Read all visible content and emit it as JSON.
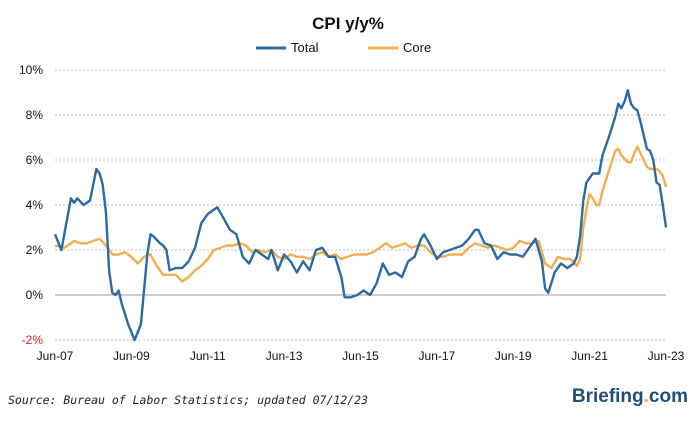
{
  "source_note": "Source: Bureau of Labor Statistics; updated 07/12/23",
  "brand": {
    "name": "Briefing",
    "dot": ".",
    "suffix": "com"
  },
  "colors": {
    "total": "#2e6a9e",
    "core": "#eeaf55",
    "negative_tick": "#e31a1c",
    "grid": "#bdbdbd"
  },
  "chart_data": {
    "type": "line",
    "title": "CPI y/y%",
    "xlabel": "",
    "ylabel": "",
    "x_tick_labels": [
      "Jun-07",
      "Jun-09",
      "Jun-11",
      "Jun-13",
      "Jun-15",
      "Jun-17",
      "Jun-19",
      "Jun-21",
      "Jun-23"
    ],
    "y_tick_labels": [
      "10%",
      "8%",
      "6%",
      "4%",
      "2%",
      "0%",
      "-2%"
    ],
    "y_ticks": [
      10,
      8,
      6,
      4,
      2,
      0,
      -2
    ],
    "ylim": [
      -2,
      10
    ],
    "x_range": [
      "2007-06",
      "2023-06"
    ],
    "grid": true,
    "legend_position": "top-center",
    "series": [
      {
        "name": "Total",
        "color": "#2e6a9e",
        "points": [
          [
            "2007-06",
            2.7
          ],
          [
            "2007-08",
            2.0
          ],
          [
            "2007-11",
            4.3
          ],
          [
            "2007-12",
            4.1
          ],
          [
            "2008-01",
            4.3
          ],
          [
            "2008-03",
            4.0
          ],
          [
            "2008-05",
            4.2
          ],
          [
            "2008-07",
            5.6
          ],
          [
            "2008-08",
            5.4
          ],
          [
            "2008-09",
            4.9
          ],
          [
            "2008-10",
            3.7
          ],
          [
            "2008-11",
            1.1
          ],
          [
            "2008-12",
            0.1
          ],
          [
            "2009-01",
            0.0
          ],
          [
            "2009-02",
            0.2
          ],
          [
            "2009-03",
            -0.4
          ],
          [
            "2009-05",
            -1.3
          ],
          [
            "2009-07",
            -2.0
          ],
          [
            "2009-09",
            -1.3
          ],
          [
            "2009-11",
            1.8
          ],
          [
            "2009-12",
            2.7
          ],
          [
            "2010-01",
            2.6
          ],
          [
            "2010-03",
            2.3
          ],
          [
            "2010-04",
            2.2
          ],
          [
            "2010-05",
            2.0
          ],
          [
            "2010-06",
            1.1
          ],
          [
            "2010-08",
            1.2
          ],
          [
            "2010-10",
            1.2
          ],
          [
            "2010-12",
            1.5
          ],
          [
            "2011-02",
            2.1
          ],
          [
            "2011-04",
            3.2
          ],
          [
            "2011-06",
            3.6
          ],
          [
            "2011-08",
            3.8
          ],
          [
            "2011-09",
            3.9
          ],
          [
            "2011-11",
            3.4
          ],
          [
            "2012-01",
            2.9
          ],
          [
            "2012-03",
            2.7
          ],
          [
            "2012-05",
            1.7
          ],
          [
            "2012-07",
            1.4
          ],
          [
            "2012-09",
            2.0
          ],
          [
            "2012-11",
            1.8
          ],
          [
            "2013-01",
            1.6
          ],
          [
            "2013-02",
            2.0
          ],
          [
            "2013-04",
            1.1
          ],
          [
            "2013-06",
            1.8
          ],
          [
            "2013-08",
            1.5
          ],
          [
            "2013-10",
            1.0
          ],
          [
            "2013-12",
            1.5
          ],
          [
            "2014-02",
            1.1
          ],
          [
            "2014-04",
            2.0
          ],
          [
            "2014-06",
            2.1
          ],
          [
            "2014-08",
            1.7
          ],
          [
            "2014-10",
            1.7
          ],
          [
            "2014-12",
            0.8
          ],
          [
            "2015-01",
            -0.1
          ],
          [
            "2015-03",
            -0.1
          ],
          [
            "2015-05",
            0.0
          ],
          [
            "2015-07",
            0.2
          ],
          [
            "2015-09",
            0.0
          ],
          [
            "2015-11",
            0.5
          ],
          [
            "2016-01",
            1.4
          ],
          [
            "2016-03",
            0.9
          ],
          [
            "2016-05",
            1.0
          ],
          [
            "2016-07",
            0.8
          ],
          [
            "2016-09",
            1.5
          ],
          [
            "2016-11",
            1.7
          ],
          [
            "2017-01",
            2.5
          ],
          [
            "2017-02",
            2.7
          ],
          [
            "2017-04",
            2.2
          ],
          [
            "2017-06",
            1.6
          ],
          [
            "2017-08",
            1.9
          ],
          [
            "2017-10",
            2.0
          ],
          [
            "2017-12",
            2.1
          ],
          [
            "2018-02",
            2.2
          ],
          [
            "2018-04",
            2.5
          ],
          [
            "2018-06",
            2.9
          ],
          [
            "2018-07",
            2.9
          ],
          [
            "2018-09",
            2.3
          ],
          [
            "2018-11",
            2.2
          ],
          [
            "2018-12",
            1.9
          ],
          [
            "2019-01",
            1.6
          ],
          [
            "2019-03",
            1.9
          ],
          [
            "2019-05",
            1.8
          ],
          [
            "2019-07",
            1.8
          ],
          [
            "2019-09",
            1.7
          ],
          [
            "2019-11",
            2.1
          ],
          [
            "2019-12",
            2.3
          ],
          [
            "2020-01",
            2.5
          ],
          [
            "2020-03",
            1.5
          ],
          [
            "2020-04",
            0.3
          ],
          [
            "2020-05",
            0.1
          ],
          [
            "2020-07",
            1.0
          ],
          [
            "2020-09",
            1.4
          ],
          [
            "2020-11",
            1.2
          ],
          [
            "2021-01",
            1.4
          ],
          [
            "2021-02",
            1.7
          ],
          [
            "2021-03",
            2.6
          ],
          [
            "2021-04",
            4.2
          ],
          [
            "2021-05",
            5.0
          ],
          [
            "2021-07",
            5.4
          ],
          [
            "2021-09",
            5.4
          ],
          [
            "2021-10",
            6.2
          ],
          [
            "2021-12",
            7.0
          ],
          [
            "2022-02",
            7.9
          ],
          [
            "2022-03",
            8.5
          ],
          [
            "2022-04",
            8.3
          ],
          [
            "2022-05",
            8.6
          ],
          [
            "2022-06",
            9.1
          ],
          [
            "2022-07",
            8.5
          ],
          [
            "2022-08",
            8.3
          ],
          [
            "2022-09",
            8.2
          ],
          [
            "2022-10",
            7.7
          ],
          [
            "2022-11",
            7.1
          ],
          [
            "2022-12",
            6.5
          ],
          [
            "2023-01",
            6.4
          ],
          [
            "2023-02",
            6.0
          ],
          [
            "2023-03",
            5.0
          ],
          [
            "2023-04",
            4.9
          ],
          [
            "2023-05",
            4.0
          ],
          [
            "2023-06",
            3.0
          ]
        ]
      },
      {
        "name": "Core",
        "color": "#eeaf55",
        "points": [
          [
            "2007-06",
            2.2
          ],
          [
            "2007-09",
            2.1
          ],
          [
            "2007-12",
            2.4
          ],
          [
            "2008-02",
            2.3
          ],
          [
            "2008-04",
            2.3
          ],
          [
            "2008-06",
            2.4
          ],
          [
            "2008-08",
            2.5
          ],
          [
            "2008-10",
            2.2
          ],
          [
            "2008-12",
            1.8
          ],
          [
            "2009-02",
            1.8
          ],
          [
            "2009-04",
            1.9
          ],
          [
            "2009-06",
            1.7
          ],
          [
            "2009-08",
            1.4
          ],
          [
            "2009-10",
            1.7
          ],
          [
            "2009-12",
            1.8
          ],
          [
            "2010-02",
            1.3
          ],
          [
            "2010-04",
            0.9
          ],
          [
            "2010-06",
            0.9
          ],
          [
            "2010-08",
            0.9
          ],
          [
            "2010-10",
            0.6
          ],
          [
            "2010-12",
            0.8
          ],
          [
            "2011-02",
            1.1
          ],
          [
            "2011-04",
            1.3
          ],
          [
            "2011-06",
            1.6
          ],
          [
            "2011-08",
            2.0
          ],
          [
            "2011-10",
            2.1
          ],
          [
            "2011-12",
            2.2
          ],
          [
            "2012-02",
            2.2
          ],
          [
            "2012-04",
            2.3
          ],
          [
            "2012-06",
            2.2
          ],
          [
            "2012-08",
            1.9
          ],
          [
            "2012-10",
            2.0
          ],
          [
            "2012-12",
            1.9
          ],
          [
            "2013-02",
            2.0
          ],
          [
            "2013-04",
            1.7
          ],
          [
            "2013-06",
            1.6
          ],
          [
            "2013-08",
            1.8
          ],
          [
            "2013-10",
            1.7
          ],
          [
            "2013-12",
            1.7
          ],
          [
            "2014-02",
            1.6
          ],
          [
            "2014-04",
            1.8
          ],
          [
            "2014-06",
            1.9
          ],
          [
            "2014-08",
            1.7
          ],
          [
            "2014-10",
            1.8
          ],
          [
            "2014-12",
            1.6
          ],
          [
            "2015-02",
            1.7
          ],
          [
            "2015-04",
            1.8
          ],
          [
            "2015-06",
            1.8
          ],
          [
            "2015-08",
            1.8
          ],
          [
            "2015-10",
            1.9
          ],
          [
            "2015-12",
            2.1
          ],
          [
            "2016-02",
            2.3
          ],
          [
            "2016-04",
            2.1
          ],
          [
            "2016-06",
            2.2
          ],
          [
            "2016-08",
            2.3
          ],
          [
            "2016-10",
            2.1
          ],
          [
            "2016-12",
            2.2
          ],
          [
            "2017-02",
            2.2
          ],
          [
            "2017-04",
            1.9
          ],
          [
            "2017-06",
            1.7
          ],
          [
            "2017-08",
            1.7
          ],
          [
            "2017-10",
            1.8
          ],
          [
            "2017-12",
            1.8
          ],
          [
            "2018-02",
            1.8
          ],
          [
            "2018-04",
            2.1
          ],
          [
            "2018-06",
            2.3
          ],
          [
            "2018-08",
            2.2
          ],
          [
            "2018-10",
            2.1
          ],
          [
            "2018-12",
            2.2
          ],
          [
            "2019-02",
            2.1
          ],
          [
            "2019-04",
            2.0
          ],
          [
            "2019-06",
            2.1
          ],
          [
            "2019-08",
            2.4
          ],
          [
            "2019-10",
            2.3
          ],
          [
            "2019-12",
            2.3
          ],
          [
            "2020-02",
            2.4
          ],
          [
            "2020-04",
            1.4
          ],
          [
            "2020-06",
            1.2
          ],
          [
            "2020-08",
            1.7
          ],
          [
            "2020-10",
            1.6
          ],
          [
            "2020-12",
            1.6
          ],
          [
            "2021-02",
            1.3
          ],
          [
            "2021-03",
            1.6
          ],
          [
            "2021-04",
            3.0
          ],
          [
            "2021-05",
            3.8
          ],
          [
            "2021-06",
            4.5
          ],
          [
            "2021-07",
            4.3
          ],
          [
            "2021-08",
            4.0
          ],
          [
            "2021-09",
            4.0
          ],
          [
            "2021-10",
            4.6
          ],
          [
            "2021-12",
            5.5
          ],
          [
            "2022-02",
            6.4
          ],
          [
            "2022-03",
            6.5
          ],
          [
            "2022-04",
            6.2
          ],
          [
            "2022-06",
            5.9
          ],
          [
            "2022-07",
            5.9
          ],
          [
            "2022-08",
            6.3
          ],
          [
            "2022-09",
            6.6
          ],
          [
            "2022-10",
            6.3
          ],
          [
            "2022-11",
            6.0
          ],
          [
            "2022-12",
            5.7
          ],
          [
            "2023-01",
            5.6
          ],
          [
            "2023-03",
            5.6
          ],
          [
            "2023-04",
            5.5
          ],
          [
            "2023-05",
            5.3
          ],
          [
            "2023-06",
            4.8
          ]
        ]
      }
    ]
  }
}
